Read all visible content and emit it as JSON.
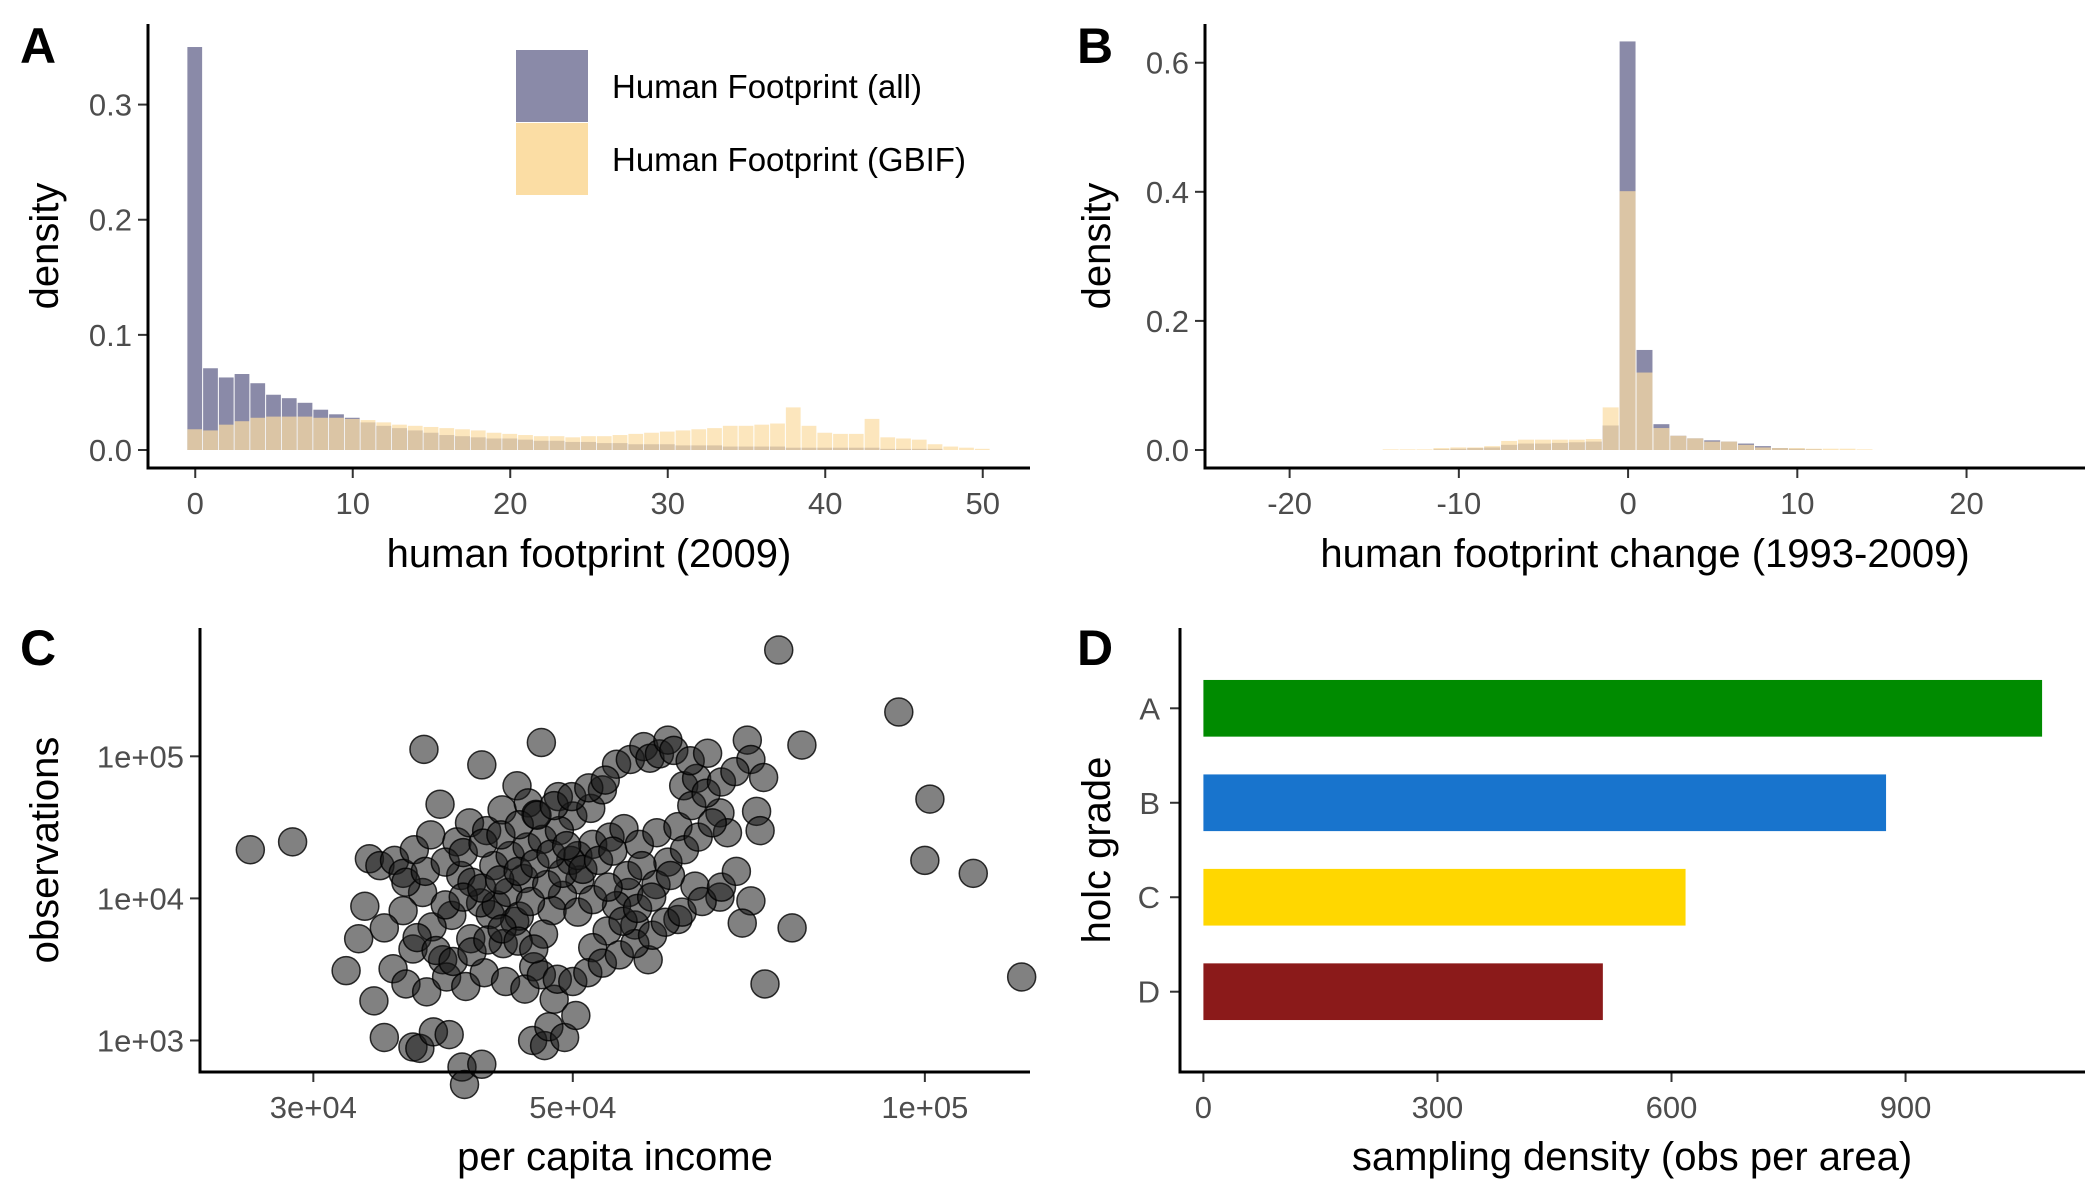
{
  "colors": {
    "all": "#8a8aa8",
    "gbif": "#fbdda4",
    "overlap": "#c19a73",
    "points": "#1a1a1a"
  },
  "chart_data": [
    {
      "panel": "A",
      "type": "bar",
      "xlabel": "human footprint (2009)",
      "ylabel": "density",
      "xlim": [
        -3,
        53
      ],
      "ylim": [
        0,
        0.37
      ],
      "xticks": [
        0,
        10,
        20,
        30,
        40,
        50
      ],
      "yticks": [
        0.0,
        0.1,
        0.2,
        0.3
      ],
      "ytick_labels": [
        "0.0",
        "0.1",
        "0.2",
        "0.3"
      ],
      "bin_width": 1,
      "x": [
        0,
        1,
        2,
        3,
        4,
        5,
        6,
        7,
        8,
        9,
        10,
        11,
        12,
        13,
        14,
        15,
        16,
        17,
        18,
        19,
        20,
        21,
        22,
        23,
        24,
        25,
        26,
        27,
        28,
        29,
        30,
        31,
        32,
        33,
        34,
        35,
        36,
        37,
        38,
        39,
        40,
        41,
        42,
        43,
        44,
        45,
        46,
        47,
        48,
        49,
        50
      ],
      "legend": {
        "position": "top-right",
        "entries": [
          "Human Footprint (all)",
          "Human Footprint (GBIF)"
        ]
      },
      "series": [
        {
          "name": "Human Footprint (all)",
          "color_key": "all",
          "values": [
            0.35,
            0.071,
            0.063,
            0.066,
            0.058,
            0.048,
            0.045,
            0.041,
            0.035,
            0.031,
            0.028,
            0.024,
            0.021,
            0.019,
            0.017,
            0.015,
            0.013,
            0.012,
            0.011,
            0.01,
            0.01,
            0.009,
            0.008,
            0.008,
            0.007,
            0.007,
            0.006,
            0.006,
            0.005,
            0.005,
            0.005,
            0.004,
            0.004,
            0.004,
            0.003,
            0.003,
            0.003,
            0.003,
            0.002,
            0.002,
            0.002,
            0.002,
            0.002,
            0.002,
            0.001,
            0.001,
            0.001,
            0.001,
            0.0,
            0.0,
            0.0
          ]
        },
        {
          "name": "Human Footprint (GBIF)",
          "color_key": "gbif",
          "values": [
            0.018,
            0.017,
            0.022,
            0.025,
            0.028,
            0.029,
            0.029,
            0.029,
            0.028,
            0.028,
            0.027,
            0.026,
            0.024,
            0.022,
            0.021,
            0.02,
            0.019,
            0.018,
            0.017,
            0.015,
            0.014,
            0.013,
            0.012,
            0.012,
            0.011,
            0.012,
            0.012,
            0.013,
            0.014,
            0.015,
            0.016,
            0.017,
            0.018,
            0.019,
            0.021,
            0.021,
            0.022,
            0.023,
            0.037,
            0.021,
            0.015,
            0.014,
            0.014,
            0.027,
            0.011,
            0.01,
            0.009,
            0.005,
            0.003,
            0.002,
            0.001
          ]
        }
      ]
    },
    {
      "panel": "B",
      "type": "bar",
      "xlabel": "human footprint change (1993-2009)",
      "ylabel": "density",
      "xlim": [
        -25,
        27
      ],
      "ylim": [
        0,
        0.66
      ],
      "xticks": [
        -20,
        -10,
        0,
        10,
        20
      ],
      "yticks": [
        0.0,
        0.2,
        0.4,
        0.6
      ],
      "ytick_labels": [
        "0.0",
        "0.2",
        "0.4",
        "0.6"
      ],
      "bin_width": 1,
      "x": [
        -14,
        -13,
        -12,
        -11,
        -10,
        -9,
        -8,
        -7,
        -6,
        -5,
        -4,
        -3,
        -2,
        -1,
        0,
        1,
        2,
        3,
        4,
        5,
        6,
        7,
        8,
        9,
        10,
        11,
        12,
        13,
        14,
        15
      ],
      "series": [
        {
          "name": "Human Footprint (all)",
          "color_key": "all",
          "values": [
            0.0,
            0.0,
            0.0,
            0.001,
            0.002,
            0.003,
            0.004,
            0.008,
            0.01,
            0.01,
            0.011,
            0.012,
            0.013,
            0.038,
            0.633,
            0.155,
            0.04,
            0.022,
            0.018,
            0.015,
            0.013,
            0.01,
            0.006,
            0.003,
            0.002,
            0.001,
            0.0,
            0.0,
            0.0,
            0.0
          ]
        },
        {
          "name": "Human Footprint (GBIF)",
          "color_key": "gbif",
          "values": [
            0.001,
            0.001,
            0.001,
            0.003,
            0.004,
            0.004,
            0.006,
            0.014,
            0.016,
            0.016,
            0.016,
            0.016,
            0.017,
            0.066,
            0.401,
            0.12,
            0.034,
            0.022,
            0.018,
            0.013,
            0.013,
            0.008,
            0.004,
            0.003,
            0.003,
            0.002,
            0.002,
            0.002,
            0.001,
            0.0
          ]
        }
      ]
    },
    {
      "panel": "C",
      "type": "scatter",
      "xlabel": "per capita income",
      "ylabel": "observations",
      "xscale": "log",
      "yscale": "log",
      "xlim": [
        24000,
        123000
      ],
      "ylim": [
        600,
        800000
      ],
      "xticks": [
        30000,
        50000,
        100000
      ],
      "xtick_labels": [
        "3e+04",
        "5e+04",
        "1e+05"
      ],
      "yticks": [
        1000,
        10000,
        100000
      ],
      "ytick_labels": [
        "1e+03",
        "1e+04",
        "1e+05"
      ],
      "points": [
        [
          26500,
          22000
        ],
        [
          28800,
          25000
        ],
        [
          33500,
          19000
        ],
        [
          33200,
          8800
        ],
        [
          32800,
          5200
        ],
        [
          32000,
          3100
        ],
        [
          33800,
          1900
        ],
        [
          34500,
          1050
        ],
        [
          36500,
          900
        ],
        [
          37000,
          880
        ],
        [
          38000,
          1150
        ],
        [
          39200,
          1100
        ],
        [
          40200,
          650
        ],
        [
          40400,
          490
        ],
        [
          41800,
          680
        ],
        [
          46200,
          1000
        ],
        [
          47300,
          920
        ],
        [
          47700,
          1250
        ],
        [
          48200,
          1950
        ],
        [
          49200,
          1050
        ],
        [
          50300,
          1500
        ],
        [
          37300,
          112000
        ],
        [
          41800,
          87000
        ],
        [
          47000,
          125000
        ],
        [
          34200,
          17000
        ],
        [
          35200,
          18500
        ],
        [
          35800,
          15000
        ],
        [
          36600,
          22000
        ],
        [
          37800,
          28000
        ],
        [
          38500,
          46000
        ],
        [
          39800,
          25000
        ],
        [
          40800,
          34000
        ],
        [
          42200,
          30000
        ],
        [
          43500,
          42000
        ],
        [
          44800,
          62000
        ],
        [
          45800,
          47000
        ],
        [
          46500,
          39000
        ],
        [
          48600,
          52000
        ],
        [
          50000,
          38000
        ],
        [
          51800,
          43000
        ],
        [
          53000,
          58000
        ],
        [
          54500,
          88000
        ],
        [
          56000,
          95000
        ],
        [
          57500,
          117000
        ],
        [
          58200,
          97000
        ],
        [
          59300,
          104000
        ],
        [
          60300,
          130000
        ],
        [
          61000,
          110000
        ],
        [
          62200,
          62000
        ],
        [
          63800,
          70000
        ],
        [
          63000,
          93000
        ],
        [
          65200,
          105000
        ],
        [
          66800,
          40000
        ],
        [
          67800,
          29000
        ],
        [
          70500,
          130000
        ],
        [
          71000,
          95000
        ],
        [
          71800,
          41000
        ],
        [
          72800,
          71000
        ],
        [
          72300,
          30000
        ],
        [
          75000,
          560000
        ],
        [
          78500,
          120000
        ],
        [
          95000,
          205000
        ],
        [
          101000,
          50000
        ],
        [
          100000,
          18500
        ],
        [
          110000,
          15000
        ],
        [
          121000,
          2800
        ],
        [
          77000,
          6200
        ],
        [
          71000,
          9600
        ],
        [
          69800,
          6700
        ],
        [
          73000,
          2500
        ],
        [
          66800,
          10200
        ],
        [
          63600,
          12200
        ],
        [
          60300,
          18000
        ],
        [
          61500,
          7100
        ],
        [
          58000,
          3700
        ],
        [
          55800,
          11000
        ],
        [
          56500,
          6500
        ],
        [
          54500,
          8900
        ],
        [
          53500,
          5900
        ],
        [
          52000,
          4500
        ],
        [
          50700,
          13500
        ],
        [
          49800,
          18500
        ],
        [
          49000,
          10500
        ],
        [
          48000,
          8200
        ],
        [
          47200,
          5600
        ],
        [
          46300,
          3300
        ],
        [
          45400,
          13800
        ],
        [
          44600,
          6900
        ],
        [
          43600,
          4800
        ],
        [
          42500,
          7700
        ],
        [
          41700,
          9300
        ],
        [
          40900,
          5200
        ],
        [
          40100,
          14500
        ],
        [
          39400,
          7600
        ],
        [
          38700,
          3700
        ],
        [
          37900,
          6300
        ],
        [
          37200,
          11000
        ],
        [
          36500,
          4400
        ],
        [
          35800,
          8200
        ],
        [
          35100,
          3200
        ],
        [
          34500,
          6200
        ],
        [
          36000,
          2500
        ],
        [
          37500,
          2200
        ],
        [
          39000,
          2800
        ],
        [
          40500,
          2400
        ],
        [
          42000,
          3000
        ],
        [
          43800,
          2600
        ],
        [
          45500,
          2300
        ],
        [
          47000,
          2900
        ],
        [
          48500,
          2700
        ],
        [
          50000,
          2600
        ],
        [
          51500,
          3000
        ],
        [
          53000,
          3500
        ],
        [
          54800,
          4000
        ],
        [
          56500,
          4800
        ],
        [
          58500,
          5500
        ],
        [
          60000,
          6800
        ],
        [
          62000,
          8000
        ],
        [
          64500,
          9500
        ],
        [
          67000,
          12000
        ],
        [
          69000,
          15500
        ],
        [
          43000,
          9000
        ],
        [
          44000,
          11000
        ],
        [
          45000,
          7500
        ],
        [
          46000,
          9500
        ],
        [
          47500,
          12500
        ],
        [
          49000,
          15000
        ],
        [
          50500,
          20000
        ],
        [
          52000,
          24000
        ],
        [
          53800,
          27000
        ],
        [
          55300,
          31000
        ],
        [
          57000,
          24000
        ],
        [
          59000,
          29000
        ],
        [
          61500,
          32000
        ],
        [
          63200,
          45000
        ],
        [
          65000,
          55000
        ],
        [
          67000,
          66000
        ],
        [
          68800,
          78000
        ],
        [
          41000,
          13000
        ],
        [
          42800,
          17000
        ],
        [
          44200,
          20000
        ],
        [
          45700,
          23000
        ],
        [
          47100,
          26000
        ],
        [
          48700,
          30000
        ],
        [
          36800,
          5300
        ],
        [
          38200,
          4300
        ],
        [
          39500,
          3600
        ],
        [
          41000,
          4200
        ],
        [
          42300,
          5100
        ],
        [
          43500,
          6100
        ],
        [
          44900,
          5000
        ],
        [
          46300,
          4400
        ],
        [
          38900,
          9000
        ],
        [
          40300,
          10200
        ],
        [
          41800,
          11800
        ],
        [
          43300,
          13500
        ],
        [
          44900,
          15500
        ],
        [
          46400,
          17500
        ],
        [
          47900,
          20500
        ],
        [
          49400,
          23500
        ],
        [
          51000,
          16000
        ],
        [
          52600,
          18500
        ],
        [
          54100,
          21500
        ],
        [
          55700,
          14500
        ],
        [
          57300,
          17000
        ],
        [
          58900,
          12500
        ],
        [
          60600,
          14500
        ],
        [
          62300,
          22000
        ],
        [
          64000,
          27000
        ],
        [
          65800,
          34000
        ],
        [
          50500,
          8000
        ],
        [
          52000,
          9800
        ],
        [
          53600,
          12000
        ],
        [
          55200,
          6900
        ],
        [
          56800,
          8500
        ],
        [
          58400,
          10200
        ],
        [
          36000,
          13000
        ],
        [
          37400,
          15500
        ],
        [
          38900,
          18000
        ],
        [
          40300,
          21000
        ],
        [
          41900,
          24500
        ],
        [
          43400,
          28000
        ],
        [
          45000,
          33000
        ],
        [
          46600,
          38500
        ],
        [
          48200,
          45000
        ],
        [
          49900,
          52000
        ],
        [
          51600,
          60000
        ],
        [
          53300,
          68000
        ]
      ]
    },
    {
      "panel": "D",
      "type": "bar",
      "orientation": "horizontal",
      "xlabel": "sampling density (obs per area)",
      "ylabel": "holc grade",
      "xlim": [
        -30,
        1130
      ],
      "xticks": [
        0,
        300,
        600,
        900
      ],
      "categories": [
        "A",
        "B",
        "C",
        "D"
      ],
      "values": [
        1075,
        875,
        618,
        512
      ],
      "bar_colors": [
        "#008b00",
        "#1874cd",
        "#ffd700",
        "#8b1a1a"
      ]
    }
  ]
}
